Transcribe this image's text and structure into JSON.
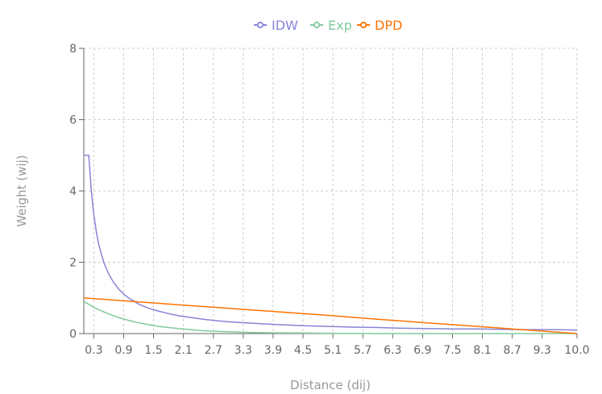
{
  "chart_data": {
    "type": "line",
    "xlabel": "Distance (dij)",
    "ylabel": "Weight (wij)",
    "xlim": [
      0.1,
      10.0
    ],
    "ylim": [
      0,
      8
    ],
    "y_ticks": [
      0,
      2,
      4,
      6,
      8
    ],
    "x_ticks": [
      "0.3",
      "0.9",
      "1.5",
      "2.1",
      "2.7",
      "3.3",
      "3.9",
      "4.5",
      "5.1",
      "5.7",
      "6.3",
      "6.9",
      "7.5",
      "8.1",
      "8.7",
      "9.3",
      "10.0"
    ],
    "x_tick_values": [
      0.3,
      0.9,
      1.5,
      2.1,
      2.7,
      3.3,
      3.9,
      4.5,
      5.1,
      5.7,
      6.3,
      6.9,
      7.5,
      8.1,
      8.7,
      9.3,
      10.0
    ],
    "grid": true,
    "legend_position": "top-center",
    "series": [
      {
        "name": "IDW",
        "color": "#8884d8",
        "points": [
          [
            0.1,
            5.0
          ],
          [
            0.15,
            5.0
          ],
          [
            0.2,
            5.0
          ],
          [
            0.25,
            4.0
          ],
          [
            0.3,
            3.33
          ],
          [
            0.35,
            2.86
          ],
          [
            0.4,
            2.5
          ],
          [
            0.5,
            2.0
          ],
          [
            0.6,
            1.67
          ],
          [
            0.7,
            1.43
          ],
          [
            0.8,
            1.25
          ],
          [
            0.9,
            1.11
          ],
          [
            1.0,
            1.0
          ],
          [
            1.2,
            0.83
          ],
          [
            1.4,
            0.71
          ],
          [
            1.6,
            0.63
          ],
          [
            1.8,
            0.56
          ],
          [
            2.0,
            0.5
          ],
          [
            2.5,
            0.4
          ],
          [
            3.0,
            0.33
          ],
          [
            3.5,
            0.29
          ],
          [
            4.0,
            0.25
          ],
          [
            4.5,
            0.22
          ],
          [
            5.0,
            0.2
          ],
          [
            5.5,
            0.18
          ],
          [
            6.0,
            0.17
          ],
          [
            6.5,
            0.15
          ],
          [
            7.0,
            0.14
          ],
          [
            7.5,
            0.13
          ],
          [
            8.0,
            0.13
          ],
          [
            8.5,
            0.12
          ],
          [
            9.0,
            0.11
          ],
          [
            9.5,
            0.11
          ],
          [
            10.0,
            0.1
          ]
        ]
      },
      {
        "name": "Exp",
        "color": "#82ca9d",
        "points": [
          [
            0.1,
            0.9
          ],
          [
            0.2,
            0.82
          ],
          [
            0.3,
            0.74
          ],
          [
            0.4,
            0.67
          ],
          [
            0.5,
            0.61
          ],
          [
            0.6,
            0.55
          ],
          [
            0.7,
            0.5
          ],
          [
            0.8,
            0.45
          ],
          [
            0.9,
            0.41
          ],
          [
            1.0,
            0.37
          ],
          [
            1.2,
            0.3
          ],
          [
            1.4,
            0.25
          ],
          [
            1.6,
            0.2
          ],
          [
            1.8,
            0.17
          ],
          [
            2.0,
            0.14
          ],
          [
            2.5,
            0.08
          ],
          [
            3.0,
            0.05
          ],
          [
            3.5,
            0.03
          ],
          [
            4.0,
            0.02
          ],
          [
            5.0,
            0.01
          ],
          [
            6.0,
            0.0
          ],
          [
            8.0,
            0.0
          ],
          [
            10.0,
            0.0
          ]
        ]
      },
      {
        "name": "DPD",
        "color": "#ff7300",
        "points": [
          [
            0.1,
            1.0
          ],
          [
            1.0,
            0.91
          ],
          [
            2.0,
            0.81
          ],
          [
            3.0,
            0.71
          ],
          [
            4.0,
            0.61
          ],
          [
            5.0,
            0.51
          ],
          [
            6.0,
            0.4
          ],
          [
            7.0,
            0.3
          ],
          [
            8.0,
            0.2
          ],
          [
            9.0,
            0.1
          ],
          [
            10.0,
            0.0
          ]
        ]
      }
    ]
  }
}
